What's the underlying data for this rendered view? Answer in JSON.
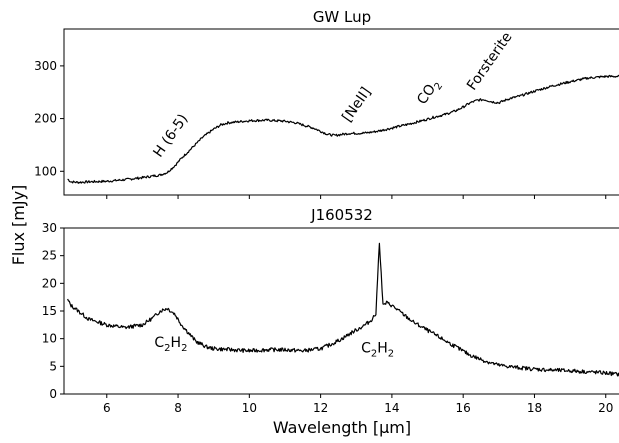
{
  "chart_data": [
    {
      "type": "line",
      "title": "GW Lup",
      "xlabel": "",
      "ylabel": "",
      "xlim": [
        4.8,
        20.4
      ],
      "ylim": [
        55,
        370
      ],
      "xticks": [
        6,
        8,
        10,
        12,
        14,
        16,
        18,
        20
      ],
      "yticks": [
        100,
        200,
        300
      ],
      "grid": false,
      "series": [
        {
          "x": [
            4.9,
            5.0,
            5.2,
            5.5,
            6.0,
            6.5,
            7.0,
            7.5,
            7.7,
            7.9,
            8.1,
            8.4,
            8.7,
            9.0,
            9.2,
            9.4,
            9.7,
            10.0,
            10.5,
            11.0,
            11.3,
            11.5,
            11.8,
            12.0,
            12.2,
            12.4,
            12.6,
            12.8,
            13.0,
            13.3,
            13.6,
            14.0,
            14.5,
            14.9,
            15.2,
            15.5,
            15.8,
            16.0,
            16.2,
            16.4,
            16.6,
            16.8,
            17.0,
            17.3,
            17.6,
            18.0,
            18.5,
            19.0,
            19.5,
            20.0,
            20.4
          ],
          "values": [
            85,
            80,
            79,
            80,
            81,
            84,
            88,
            93,
            98,
            110,
            125,
            145,
            165,
            180,
            188,
            192,
            194,
            196,
            197,
            195,
            192,
            188,
            182,
            176,
            170,
            168,
            170,
            172,
            172,
            173,
            176,
            182,
            190,
            197,
            203,
            208,
            215,
            222,
            230,
            235,
            236,
            232,
            230,
            238,
            243,
            252,
            262,
            270,
            277,
            280,
            280
          ]
        }
      ],
      "annotations": [
        {
          "text": "H (6-5)",
          "x": 7.5,
          "y": 125
        },
        {
          "text": "[NeII]",
          "x": 12.8,
          "y": 192
        },
        {
          "text": "CO",
          "sub": "2",
          "x": 14.9,
          "y": 225
        },
        {
          "text": "Forsterite",
          "x": 16.3,
          "y": 252
        }
      ]
    },
    {
      "type": "line",
      "title": "J160532",
      "xlabel": "Wavelength [μm]",
      "ylabel": "Flux [mJy]",
      "xlim": [
        4.8,
        20.4
      ],
      "ylim": [
        0,
        30
      ],
      "xticks": [
        6,
        8,
        10,
        12,
        14,
        16,
        18,
        20
      ],
      "yticks": [
        0,
        5,
        10,
        15,
        20,
        25,
        30
      ],
      "grid": false,
      "series": [
        {
          "x": [
            4.9,
            5.0,
            5.2,
            5.5,
            6.0,
            6.5,
            7.0,
            7.3,
            7.5,
            7.7,
            7.9,
            8.1,
            8.3,
            8.5,
            8.8,
            9.0,
            9.5,
            10.0,
            10.5,
            11.0,
            11.5,
            12.0,
            12.3,
            12.6,
            12.9,
            13.2,
            13.4,
            13.55,
            13.65,
            13.75,
            13.85,
            14.0,
            14.3,
            14.6,
            15.0,
            15.4,
            15.8,
            16.2,
            16.6,
            17.0,
            17.5,
            18.0,
            18.5,
            19.0,
            19.5,
            20.0,
            20.4
          ],
          "values": [
            17,
            16,
            15,
            13.5,
            12.5,
            12,
            12.5,
            13.8,
            15,
            15.5,
            14.5,
            12.5,
            11,
            9.5,
            8.5,
            8.2,
            8,
            7.8,
            8,
            8,
            7.8,
            8.2,
            9,
            10,
            11.2,
            12.3,
            13.2,
            14.5,
            27.5,
            16,
            16.5,
            16,
            14.5,
            13,
            11.5,
            10,
            8.5,
            7,
            6,
            5.2,
            4.8,
            4.5,
            4.3,
            4.2,
            4,
            3.8,
            3.5
          ]
        }
      ],
      "annotations": [
        {
          "text": "C",
          "sub": "2",
          "text2": "H",
          "sub2": "2",
          "x": 7.8,
          "y": 8.5
        },
        {
          "text": "C",
          "sub": "2",
          "text2": "H",
          "sub2": "2",
          "x": 13.6,
          "y": 7.5
        }
      ]
    }
  ]
}
